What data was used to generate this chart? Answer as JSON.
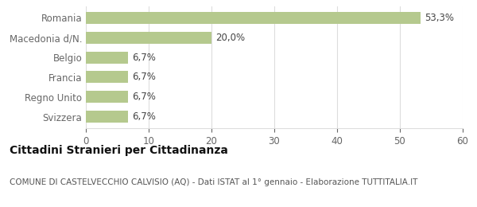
{
  "categories": [
    "Svizzera",
    "Regno Unito",
    "Francia",
    "Belgio",
    "Macedonia d/N.",
    "Romania"
  ],
  "values": [
    6.7,
    6.7,
    6.7,
    6.7,
    20.0,
    53.3
  ],
  "labels": [
    "6,7%",
    "6,7%",
    "6,7%",
    "6,7%",
    "20,0%",
    "53,3%"
  ],
  "bar_color": "#b5c98e",
  "background_color": "#ffffff",
  "xlim": [
    0,
    60
  ],
  "xticks": [
    0,
    10,
    20,
    30,
    40,
    50,
    60
  ],
  "title_bold": "Cittadini Stranieri per Cittadinanza",
  "subtitle": "COMUNE DI CASTELVECCHIO CALVISIO (AQ) - Dati ISTAT al 1° gennaio - Elaborazione TUTTITALIA.IT",
  "title_fontsize": 10,
  "subtitle_fontsize": 7.5,
  "label_fontsize": 8.5,
  "tick_fontsize": 8.5,
  "bar_height": 0.6,
  "grid_color": "#dddddd",
  "text_color": "#666666",
  "axis_label_color": "#444444"
}
